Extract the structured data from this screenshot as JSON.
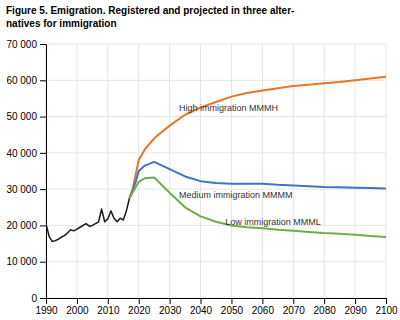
{
  "chart_data": {
    "type": "line",
    "title": [
      "Figure 5. Emigration. Registered and projected in three alter-",
      "natives for immigration"
    ],
    "xlim": [
      1990,
      2100
    ],
    "ylim": [
      0,
      70000
    ],
    "xticks": [
      1990,
      2000,
      2010,
      2020,
      2030,
      2040,
      2050,
      2060,
      2070,
      2080,
      2090,
      2100
    ],
    "yticks": [
      0,
      {
        "value": 10000,
        "label": "10 000"
      },
      {
        "value": 20000,
        "label": "20 000"
      },
      {
        "value": 30000,
        "label": "30 000"
      },
      {
        "value": 40000,
        "label": "40 000"
      },
      {
        "value": 50000,
        "label": "50 000"
      },
      {
        "value": 60000,
        "label": "60 000"
      },
      {
        "value": 70000,
        "label": "70 000"
      }
    ],
    "grid": true,
    "series": [
      {
        "color": "#1a1a1a",
        "x": [
          1990,
          1991,
          1992,
          1993,
          1994,
          1995,
          1996,
          1997,
          1998,
          1999,
          2000,
          2001,
          2002,
          2003,
          2004,
          2005,
          2006,
          2007,
          2008,
          2009,
          2010,
          2011,
          2012,
          2013,
          2014,
          2015,
          2016,
          2017
        ],
        "values": [
          20500,
          17000,
          15600,
          15800,
          16200,
          16800,
          17200,
          18000,
          18800,
          18500,
          19000,
          19500,
          20000,
          20500,
          19800,
          20000,
          20500,
          21000,
          24500,
          21000,
          21800,
          24000,
          22000,
          21000,
          22000,
          21500,
          24000,
          27500
        ]
      },
      {
        "color": "#e87722",
        "x": [
          2017,
          2018,
          2019,
          2020,
          2022,
          2025,
          2030,
          2035,
          2040,
          2045,
          2050,
          2055,
          2060,
          2065,
          2070,
          2075,
          2080,
          2085,
          2090,
          2095,
          2100
        ],
        "values": [
          27500,
          30000,
          34000,
          38000,
          41000,
          44000,
          47500,
          50500,
          52500,
          54000,
          55500,
          56500,
          57200,
          57800,
          58400,
          58800,
          59200,
          59500,
          60000,
          60500,
          61000
        ]
      },
      {
        "color": "#4472c4",
        "x": [
          2017,
          2018,
          2019,
          2020,
          2022,
          2025,
          2030,
          2035,
          2040,
          2045,
          2050,
          2055,
          2060,
          2065,
          2070,
          2075,
          2080,
          2085,
          2090,
          2095,
          2100
        ],
        "values": [
          27500,
          29500,
          32000,
          35000,
          36500,
          37500,
          35500,
          33500,
          32200,
          31700,
          31500,
          31500,
          31500,
          31200,
          31000,
          30800,
          30600,
          30500,
          30400,
          30300,
          30200
        ]
      },
      {
        "color": "#70ad47",
        "x": [
          2017,
          2018,
          2019,
          2020,
          2022,
          2025,
          2030,
          2035,
          2040,
          2045,
          2050,
          2055,
          2060,
          2065,
          2070,
          2075,
          2080,
          2085,
          2090,
          2095,
          2100
        ],
        "values": [
          27500,
          29000,
          30500,
          32000,
          33000,
          33200,
          29000,
          25000,
          22500,
          21000,
          20000,
          19500,
          19200,
          18800,
          18500,
          18200,
          17900,
          17700,
          17400,
          17100,
          16800
        ]
      }
    ],
    "annotations": [
      {
        "text": "High immigration MMMH",
        "x": 2033,
        "y": 51500
      },
      {
        "text": "Medium immigration MMMM",
        "x": 2033,
        "y": 27500
      },
      {
        "text": "Low immigration MMML",
        "x": 2048,
        "y": 20000
      }
    ]
  }
}
